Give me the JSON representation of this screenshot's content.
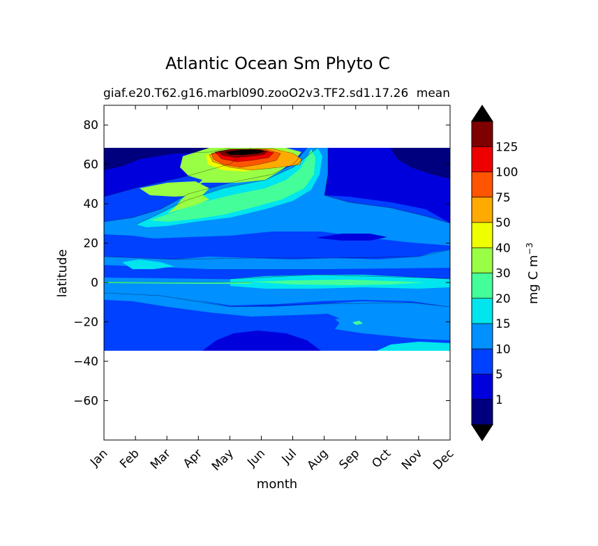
{
  "chart_data": {
    "type": "heatmap",
    "subtype": "filled-contour",
    "title": "Atlantic Ocean Sm Phyto C",
    "subtitle_left": "giaf.e20.T62.g16.marbl090.zooO2v3.TF2.sd1.17.26",
    "subtitle_right": "mean",
    "xlabel": "month",
    "ylabel": "latitude",
    "x_categories": [
      "Jan",
      "Feb",
      "Mar",
      "Apr",
      "May",
      "Jun",
      "Jul",
      "Aug",
      "Sep",
      "Oct",
      "Nov",
      "Dec"
    ],
    "y_ticks": [
      80,
      60,
      40,
      20,
      0,
      -20,
      -40,
      -60
    ],
    "y_tick_labels": [
      "80",
      "60",
      "40",
      "20",
      "0",
      "−20",
      "−40",
      "−60"
    ],
    "ylim": [
      -80,
      90
    ],
    "data_lat_range": [
      -34,
      69
    ],
    "colorbar": {
      "label": "mg C m",
      "label_exponent": "−3",
      "levels": [
        1,
        5,
        10,
        15,
        20,
        30,
        40,
        50,
        75,
        100,
        125
      ],
      "tick_labels": [
        "1",
        "5",
        "10",
        "15",
        "20",
        "30",
        "40",
        "50",
        "75",
        "100",
        "125"
      ],
      "colors": [
        "#00007f",
        "#0000dd",
        "#0040ff",
        "#0090ff",
        "#00e5ee",
        "#44ff99",
        "#99ff44",
        "#eeff00",
        "#ffaa00",
        "#ff5500",
        "#ee0000",
        "#7f0000"
      ],
      "extend": "both",
      "under_color": "#000000",
      "over_color": "#000000"
    },
    "features": [
      {
        "region": "high-latitude bloom peak",
        "lat": 66,
        "months": "May-Jul",
        "level": ">125"
      },
      {
        "region": "mid-latitude spring bloom",
        "lat": [
          40,
          60
        ],
        "months": "Apr-Jul",
        "level": "20-50"
      },
      {
        "region": "equatorial band",
        "lat": [
          -2,
          4
        ],
        "months": "all",
        "level": "10-20"
      },
      {
        "region": "winter high-latitude minimum",
        "lat": [
          55,
          69
        ],
        "months": "Nov-Feb",
        "level": "<1"
      }
    ]
  }
}
